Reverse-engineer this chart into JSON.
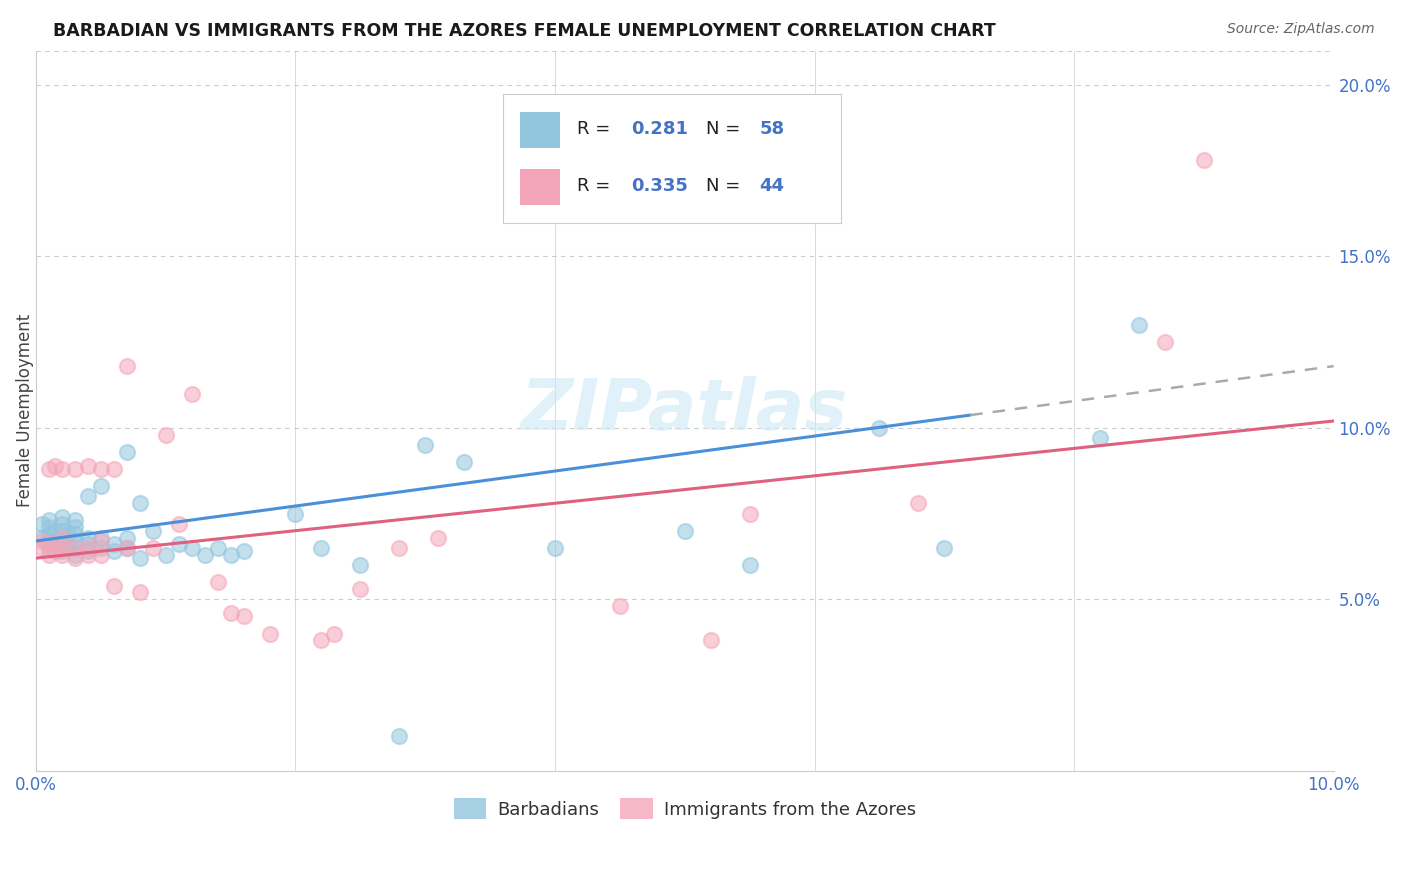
{
  "title": "BARBADIAN VS IMMIGRANTS FROM THE AZORES FEMALE UNEMPLOYMENT CORRELATION CHART",
  "source": "Source: ZipAtlas.com",
  "ylabel": "Female Unemployment",
  "xlim": [
    0.0,
    0.1
  ],
  "ylim": [
    0.0,
    0.21
  ],
  "xticks": [
    0.0,
    0.02,
    0.04,
    0.06,
    0.08,
    0.1
  ],
  "xticklabels": [
    "0.0%",
    "",
    "",
    "",
    "",
    "10.0%"
  ],
  "yticks_right": [
    0.05,
    0.1,
    0.15,
    0.2
  ],
  "ytick_labels_right": [
    "5.0%",
    "10.0%",
    "15.0%",
    "20.0%"
  ],
  "color_barbadian": "#92c5de",
  "color_azores": "#f4a6b8",
  "color_blue_text": "#4472c4",
  "trendline1": [
    0.0,
    0.067,
    0.1,
    0.118
  ],
  "trendline2": [
    0.0,
    0.062,
    0.1,
    0.102
  ],
  "trendline1_dash_start": 0.072,
  "legend_label1": "Barbadians",
  "legend_label2": "Immigrants from the Azores",
  "barbadian_x": [
    0.0005,
    0.0005,
    0.001,
    0.001,
    0.001,
    0.001,
    0.001,
    0.0015,
    0.0015,
    0.002,
    0.002,
    0.002,
    0.002,
    0.002,
    0.002,
    0.0025,
    0.0025,
    0.003,
    0.003,
    0.003,
    0.003,
    0.003,
    0.003,
    0.004,
    0.004,
    0.004,
    0.004,
    0.005,
    0.005,
    0.005,
    0.006,
    0.006,
    0.007,
    0.007,
    0.007,
    0.008,
    0.008,
    0.009,
    0.01,
    0.011,
    0.012,
    0.013,
    0.014,
    0.015,
    0.016,
    0.02,
    0.022,
    0.025,
    0.028,
    0.03,
    0.033,
    0.04,
    0.05,
    0.055,
    0.065,
    0.07,
    0.082,
    0.085
  ],
  "barbadian_y": [
    0.068,
    0.072,
    0.065,
    0.067,
    0.069,
    0.071,
    0.073,
    0.066,
    0.07,
    0.064,
    0.066,
    0.068,
    0.07,
    0.072,
    0.074,
    0.065,
    0.069,
    0.063,
    0.065,
    0.067,
    0.069,
    0.071,
    0.073,
    0.064,
    0.066,
    0.068,
    0.08,
    0.065,
    0.068,
    0.083,
    0.064,
    0.066,
    0.065,
    0.068,
    0.093,
    0.062,
    0.078,
    0.07,
    0.063,
    0.066,
    0.065,
    0.063,
    0.065,
    0.063,
    0.064,
    0.075,
    0.065,
    0.06,
    0.01,
    0.095,
    0.09,
    0.065,
    0.07,
    0.06,
    0.1,
    0.065,
    0.097,
    0.13
  ],
  "azores_x": [
    0.0005,
    0.0005,
    0.001,
    0.001,
    0.001,
    0.0015,
    0.0015,
    0.002,
    0.002,
    0.002,
    0.002,
    0.003,
    0.003,
    0.003,
    0.004,
    0.004,
    0.004,
    0.005,
    0.005,
    0.005,
    0.006,
    0.006,
    0.007,
    0.007,
    0.008,
    0.009,
    0.01,
    0.011,
    0.012,
    0.014,
    0.015,
    0.016,
    0.018,
    0.022,
    0.023,
    0.025,
    0.028,
    0.031,
    0.045,
    0.052,
    0.055,
    0.068,
    0.087,
    0.09
  ],
  "azores_y": [
    0.065,
    0.067,
    0.063,
    0.066,
    0.088,
    0.064,
    0.089,
    0.063,
    0.065,
    0.068,
    0.088,
    0.062,
    0.065,
    0.088,
    0.063,
    0.065,
    0.089,
    0.063,
    0.067,
    0.088,
    0.054,
    0.088,
    0.065,
    0.118,
    0.052,
    0.065,
    0.098,
    0.072,
    0.11,
    0.055,
    0.046,
    0.045,
    0.04,
    0.038,
    0.04,
    0.053,
    0.065,
    0.068,
    0.048,
    0.038,
    0.075,
    0.078,
    0.125,
    0.178
  ]
}
